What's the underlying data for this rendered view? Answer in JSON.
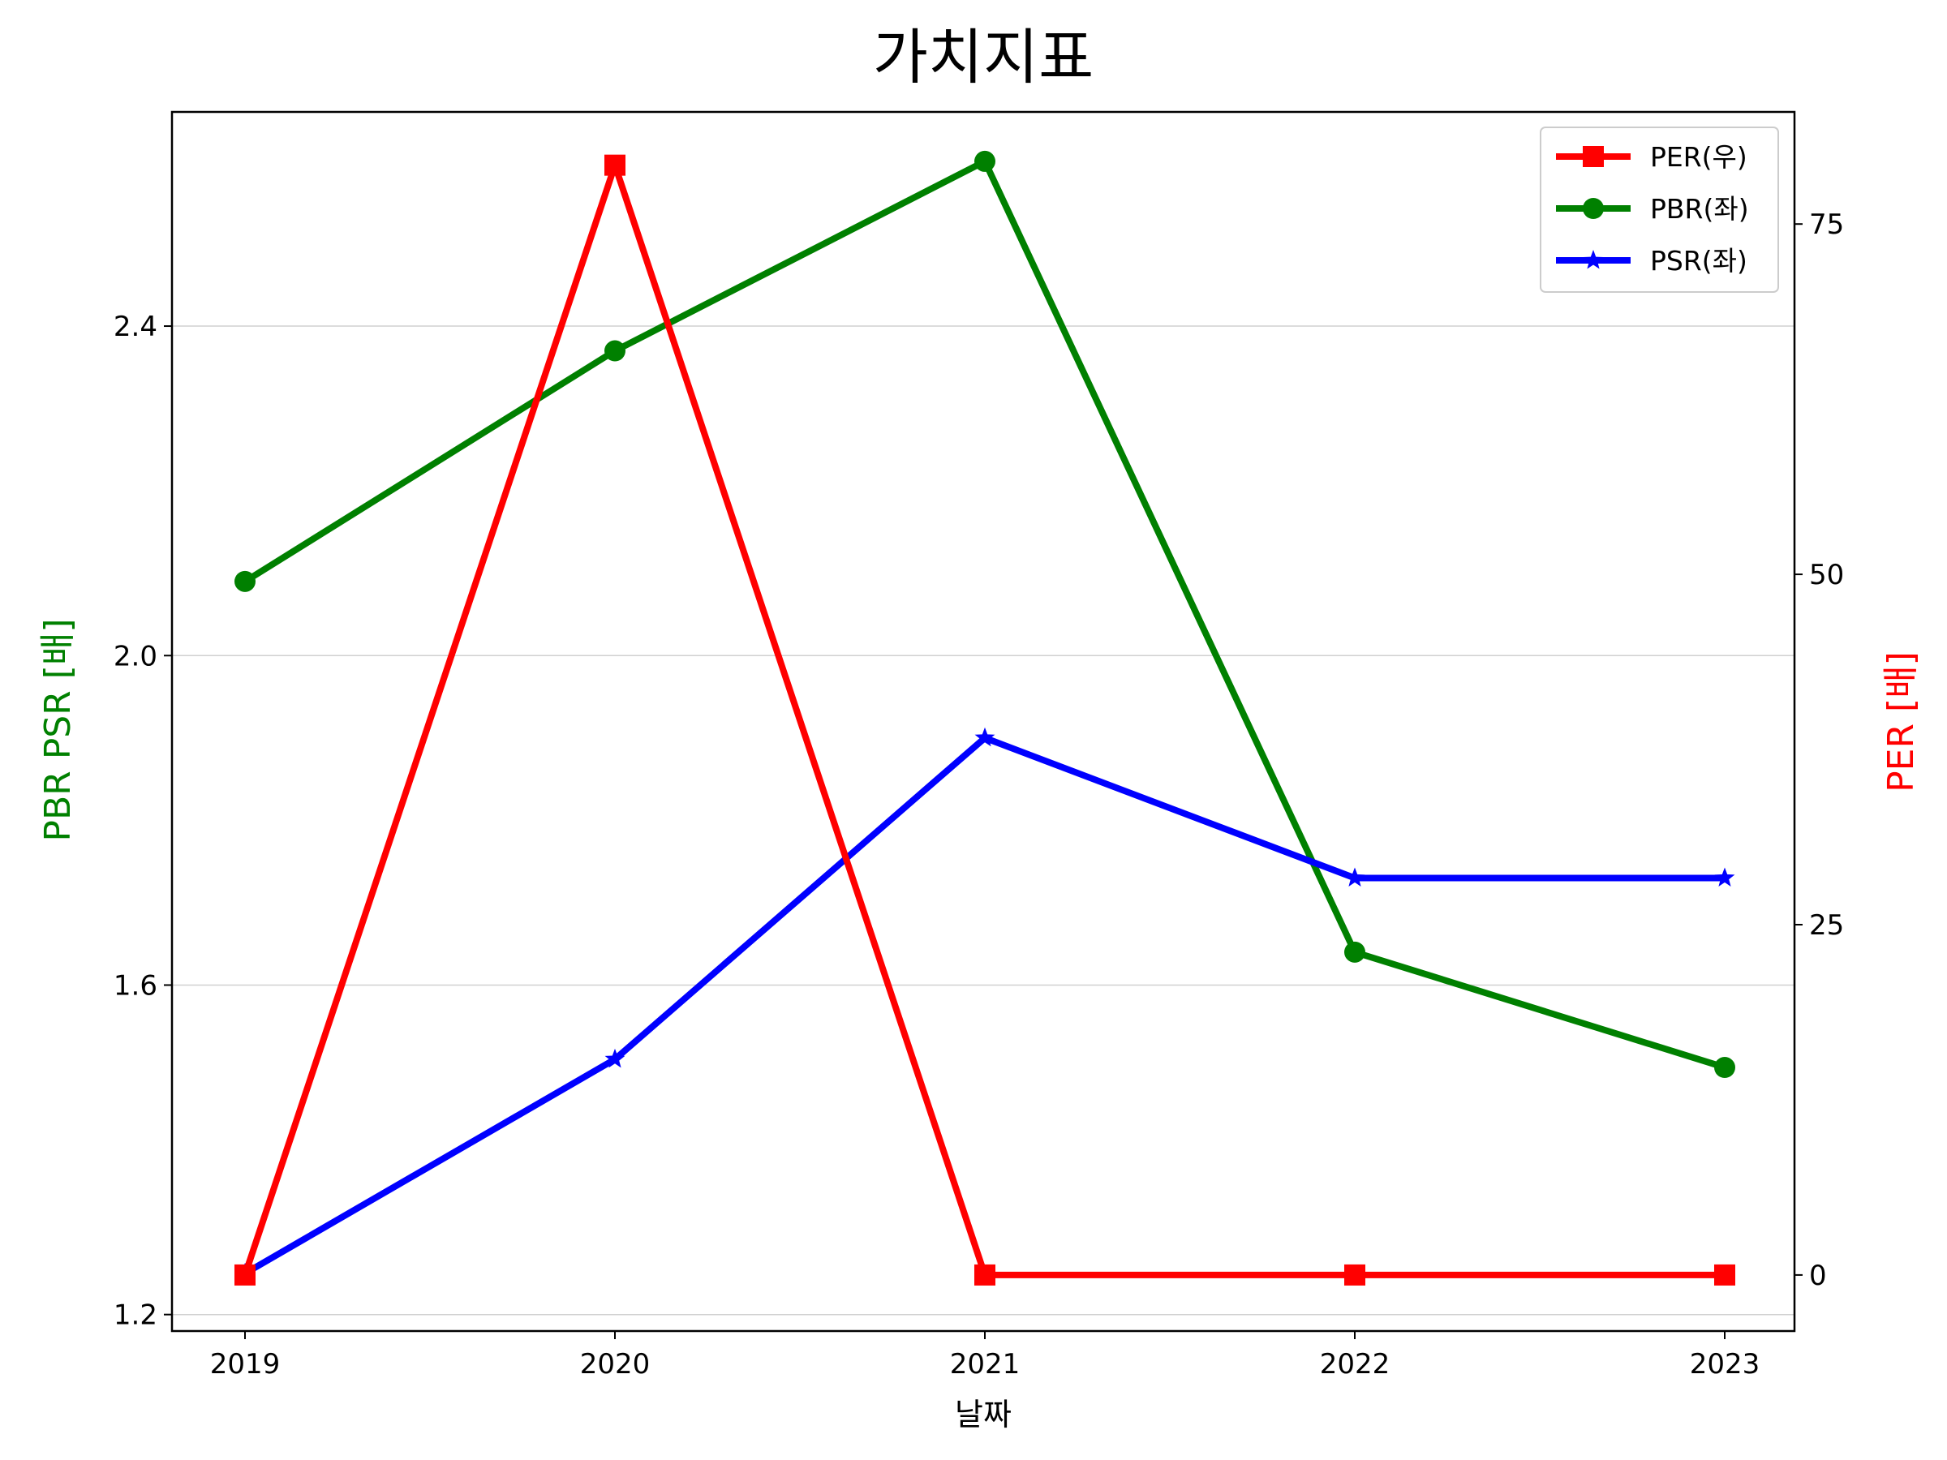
{
  "chart_data": {
    "type": "line",
    "title": "가치지표",
    "xlabel": "날짜",
    "ylabel_left": "PBR PSR [배]",
    "ylabel_right": "PER [배]",
    "categories": [
      "2019",
      "2020",
      "2021",
      "2022",
      "2023"
    ],
    "ylim_left": [
      1.18,
      2.66
    ],
    "ylim_right": [
      -4,
      83
    ],
    "yticks_left": [
      "1.2",
      "1.6",
      "2.0",
      "2.4"
    ],
    "yticks_right": [
      "0",
      "25",
      "50",
      "75"
    ],
    "grid": "horizontal (left axis)",
    "legend_position": "top-right",
    "series": [
      {
        "name": "PER(우)",
        "axis": "right",
        "color": "#ff0000",
        "marker": "square",
        "values": [
          0,
          79.2,
          0,
          0,
          0
        ]
      },
      {
        "name": "PBR(좌)",
        "axis": "left",
        "color": "#008000",
        "marker": "circle",
        "values": [
          2.09,
          2.37,
          2.6,
          1.64,
          1.5
        ]
      },
      {
        "name": "PSR(좌)",
        "axis": "left",
        "color": "#0000ff",
        "marker": "star",
        "values": [
          1.25,
          1.51,
          1.9,
          1.73,
          1.73
        ]
      }
    ]
  },
  "colors": {
    "left_axis_label": "#008000",
    "right_axis_label": "#ff0000"
  }
}
